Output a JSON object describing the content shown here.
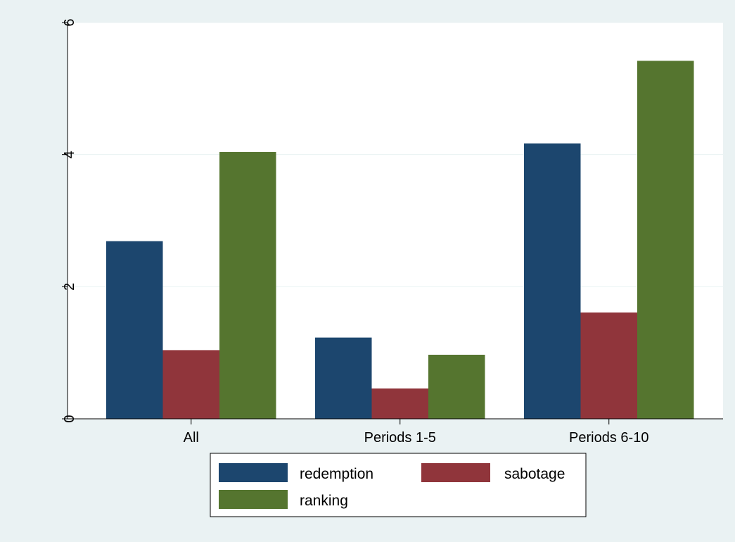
{
  "chart_data": {
    "type": "bar",
    "title": "",
    "xlabel": "",
    "ylabel": "",
    "categories": [
      "All",
      "Periods 1-5",
      "Periods 6-10"
    ],
    "series": [
      {
        "name": "redemption",
        "color": "#1c466e",
        "values": [
          2.69,
          1.23,
          4.17
        ]
      },
      {
        "name": "sabotage",
        "color": "#90353b",
        "values": [
          1.04,
          0.46,
          1.61
        ]
      },
      {
        "name": "ranking",
        "color": "#55752f",
        "values": [
          4.04,
          0.97,
          5.42
        ]
      }
    ],
    "ylim": [
      0,
      6
    ],
    "yticks": [
      0,
      2,
      4,
      6
    ],
    "grid": true,
    "legend_position": "bottom",
    "colors": {
      "plot_background": "#ffffff",
      "page_background": "#eaf2f3",
      "gridline": "#eaf2f3"
    }
  }
}
